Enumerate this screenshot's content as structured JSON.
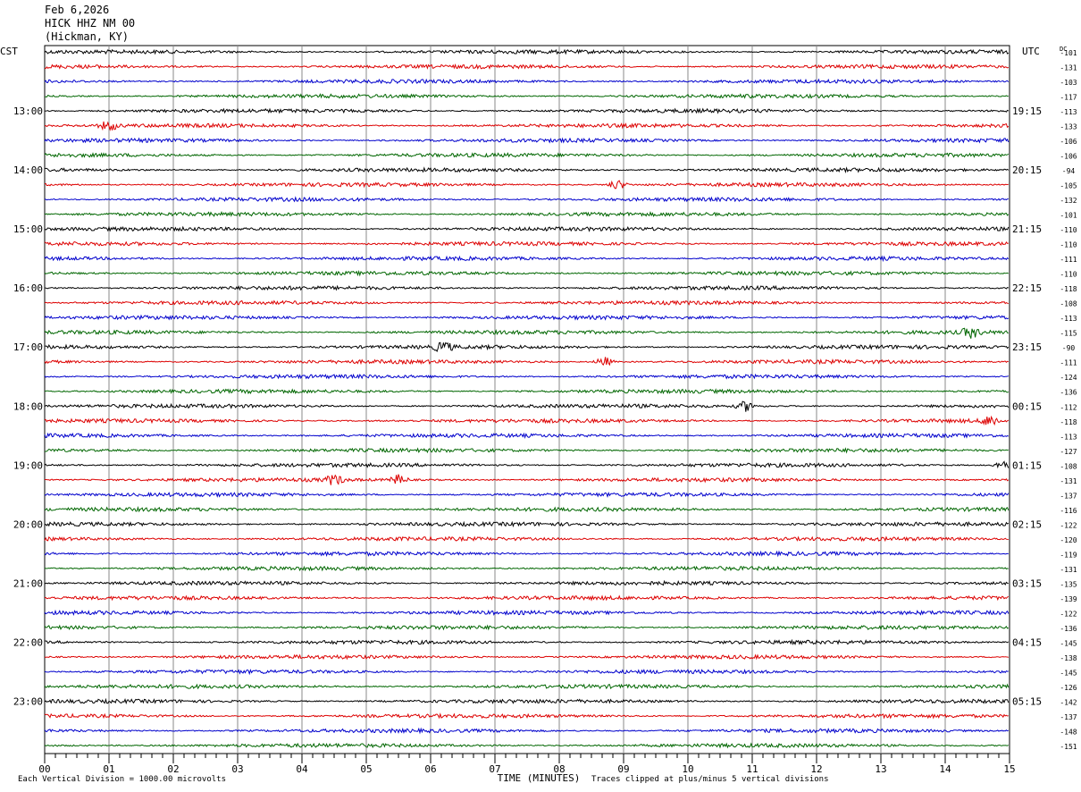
{
  "header": {
    "date": "Feb 6,2026",
    "station": "HICK HHZ NM 00",
    "location": "(Hickman, KY)"
  },
  "chart_data": {
    "type": "line",
    "title": "Feb 6,2026",
    "left_axis_label": "CST",
    "right_axis_label": "UTC",
    "dc_label": "DC",
    "xlabel": "TIME (MINUTES)",
    "xlim": [
      0,
      15
    ],
    "x_ticks": [
      "00",
      "01",
      "02",
      "03",
      "04",
      "05",
      "06",
      "07",
      "08",
      "09",
      "10",
      "11",
      "12",
      "13",
      "14",
      "15"
    ],
    "left_hour_labels": [
      "13:00",
      "14:00",
      "15:00",
      "16:00",
      "17:00",
      "18:00",
      "19:00",
      "20:00",
      "21:00",
      "22:00",
      "23:00"
    ],
    "right_hour_labels": [
      "19:15",
      "20:15",
      "21:15",
      "22:15",
      "23:15",
      "00:15",
      "01:15",
      "02:15",
      "03:15",
      "04:15",
      "05:15"
    ],
    "trace_colors": [
      "#000000",
      "#dd0000",
      "#0000cc",
      "#006600"
    ],
    "dc_offsets": [
      "-101",
      "-131",
      "-103",
      "-117",
      "-113",
      "-133",
      "-106",
      "-106",
      "-94",
      "-105",
      "-132",
      "-101",
      "-110",
      "-110",
      "-111",
      "-110",
      "-118",
      "-108",
      "-113",
      "-115",
      "-90",
      "-111",
      "-124",
      "-136",
      "-112",
      "-118",
      "-113",
      "-127",
      "-108",
      "-131",
      "-137",
      "-116",
      "-122",
      "-120",
      "-119",
      "-131",
      "-135",
      "-139",
      "-122",
      "-136",
      "-145",
      "-138",
      "-145",
      "-126",
      "-142",
      "-137",
      "-148",
      "-151"
    ],
    "events": [
      {
        "trace": 20,
        "minute": 6.2
      },
      {
        "trace": 21,
        "minute": 8.7
      },
      {
        "trace": 19,
        "minute": 14.4
      },
      {
        "trace": 24,
        "minute": 10.9
      },
      {
        "trace": 28,
        "minute": 14.9
      },
      {
        "trace": 29,
        "minute": 4.5
      },
      {
        "trace": 29,
        "minute": 5.5
      },
      {
        "trace": 25,
        "minute": 14.7
      },
      {
        "trace": 5,
        "minute": 1.0
      },
      {
        "trace": 9,
        "minute": 8.9
      }
    ]
  },
  "footer": {
    "vertical_division": "Each Vertical Division = 1000.00 microvolts",
    "clip_note": "Traces clipped at plus/minus 5 vertical divisions"
  }
}
